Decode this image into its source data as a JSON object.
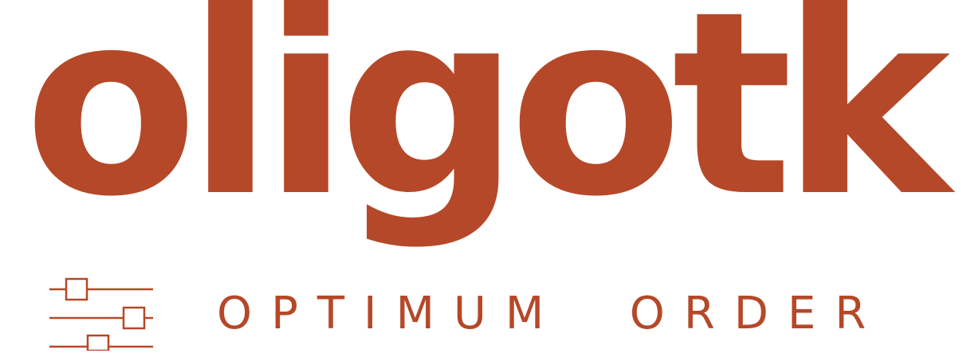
{
  "brand": {
    "wordmark": "oligotk",
    "tagline": "OPTIMUM  ORDER",
    "icon": "sliders-icon",
    "color": "#b54828",
    "background": "#ffffff"
  }
}
